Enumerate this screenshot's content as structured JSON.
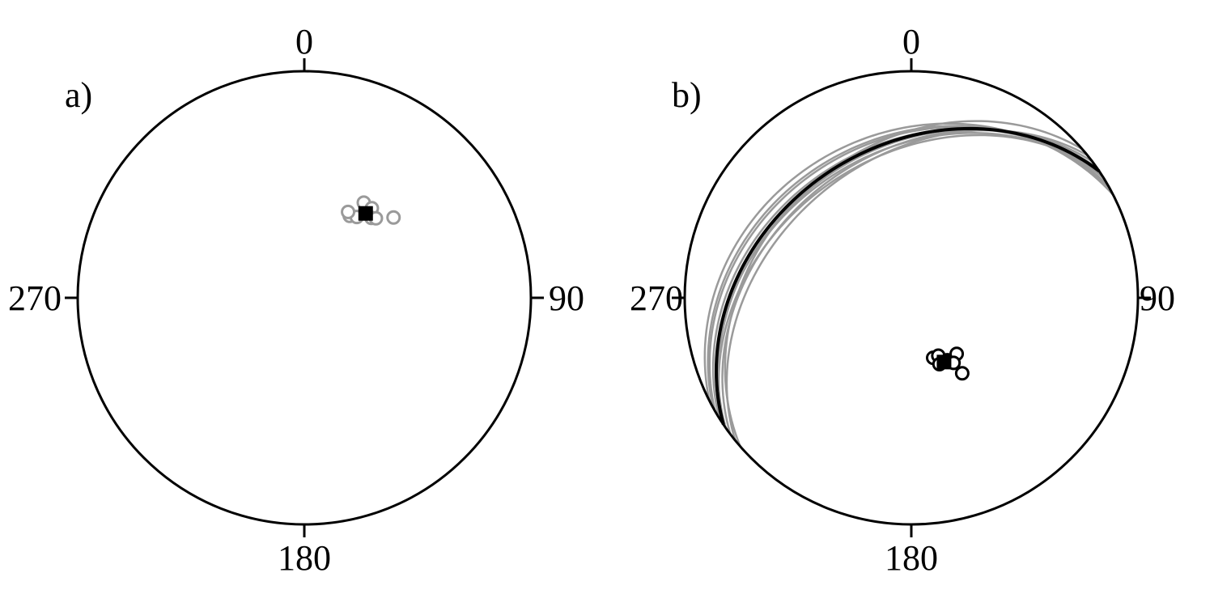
{
  "colors": {
    "net_outline": "#000000",
    "individual": "#9a9a9a",
    "mean": "#000000",
    "mean_plane": "#000000",
    "background": "#ffffff"
  },
  "panels": [
    {
      "label": "a)",
      "ticks": {
        "north": "0",
        "east": "90",
        "south": "180",
        "west": "270"
      }
    },
    {
      "label": "b)",
      "ticks": {
        "north": "0",
        "east": "90",
        "south": "180",
        "west": "270"
      }
    }
  ],
  "chart_data": [
    {
      "type": "scatter",
      "projection": "stereonet",
      "panel": "a)",
      "axis": {
        "azimuth_range_deg": [
          0,
          360
        ],
        "ticks_deg": [
          0,
          90,
          180,
          270
        ]
      },
      "points": [
        {
          "kind": "individual",
          "dec": 32,
          "inc": 49
        },
        {
          "kind": "individual",
          "dec": 37,
          "inc": 49
        },
        {
          "kind": "individual",
          "dec": 29,
          "inc": 56
        },
        {
          "kind": "individual",
          "dec": 33,
          "inc": 55
        },
        {
          "kind": "individual",
          "dec": 40,
          "inc": 52
        },
        {
          "kind": "individual",
          "dec": 42,
          "inc": 51
        },
        {
          "kind": "individual",
          "dec": 27,
          "inc": 55
        },
        {
          "kind": "individual",
          "dec": 48,
          "inc": 46
        }
      ],
      "mean": {
        "dec": 36,
        "inc": 52
      }
    },
    {
      "type": "scatter",
      "projection": "stereonet",
      "panel": "b)",
      "axis": {
        "azimuth_range_deg": [
          0,
          360
        ],
        "ticks_deg": [
          0,
          90,
          180,
          270
        ]
      },
      "points": [
        {
          "kind": "individual",
          "dec": 160,
          "inc": 67
        },
        {
          "kind": "individual",
          "dec": 155,
          "inc": 67
        },
        {
          "kind": "individual",
          "dec": 157,
          "inc": 64
        },
        {
          "kind": "individual",
          "dec": 150,
          "inc": 64
        },
        {
          "kind": "individual",
          "dec": 141,
          "inc": 64
        },
        {
          "kind": "individual",
          "dec": 147,
          "inc": 62
        },
        {
          "kind": "individual",
          "dec": 146,
          "inc": 57
        }
      ],
      "mean": {
        "dec": 153,
        "inc": 64
      },
      "planes": [
        {
          "kind": "individual",
          "strike": 235,
          "dip": 35
        },
        {
          "kind": "individual",
          "strike": 238,
          "dip": 33
        },
        {
          "kind": "individual",
          "strike": 233,
          "dip": 37
        },
        {
          "kind": "individual",
          "strike": 240,
          "dip": 31
        },
        {
          "kind": "individual",
          "strike": 231,
          "dip": 39
        },
        {
          "kind": "individual",
          "strike": 243,
          "dip": 28
        },
        {
          "kind": "individual",
          "strike": 237,
          "dip": 36
        },
        {
          "kind": "individual",
          "strike": 229,
          "dip": 34
        },
        {
          "kind": "individual",
          "strike": 241,
          "dip": 30
        },
        {
          "kind": "individual",
          "strike": 236,
          "dip": 38
        }
      ],
      "mean_plane": {
        "strike": 236,
        "dip": 34
      }
    }
  ]
}
